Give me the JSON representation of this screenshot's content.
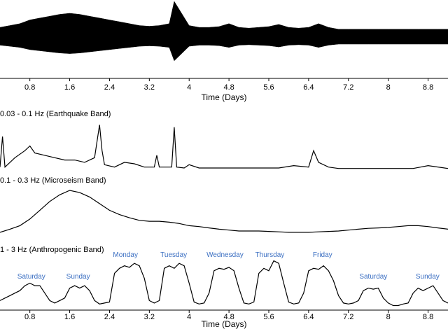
{
  "chart_data": [
    {
      "type": "envelope",
      "color": "#000000",
      "x": [
        0.2,
        0.4,
        0.6,
        0.8,
        1.0,
        1.2,
        1.4,
        1.6,
        1.8,
        2.0,
        2.2,
        2.4,
        2.6,
        2.8,
        3.0,
        3.2,
        3.4,
        3.6,
        3.7,
        4.0,
        4.2,
        4.4,
        4.6,
        4.8,
        5.0,
        5.2,
        5.4,
        5.6,
        5.8,
        6.0,
        6.2,
        6.4,
        6.6,
        6.8,
        7.0,
        7.2,
        7.4,
        7.6,
        7.8,
        8.0,
        8.2,
        8.4,
        8.6,
        8.8,
        9.0,
        9.2
      ],
      "values": [
        0.3,
        0.35,
        0.4,
        0.5,
        0.55,
        0.6,
        0.65,
        0.68,
        0.65,
        0.6,
        0.55,
        0.5,
        0.45,
        0.4,
        0.35,
        0.33,
        0.35,
        0.4,
        1.0,
        0.35,
        0.3,
        0.3,
        0.32,
        0.4,
        0.3,
        0.28,
        0.3,
        0.32,
        0.38,
        0.3,
        0.28,
        0.3,
        0.4,
        0.3,
        0.25,
        0.25,
        0.25,
        0.25,
        0.25,
        0.25,
        0.25,
        0.25,
        0.25,
        0.25,
        0.25,
        0.25
      ],
      "xlim": [
        0.2,
        9.2
      ],
      "ylim": [
        0,
        1
      ],
      "xticks": [
        0.8,
        1.6,
        2.4,
        3.2,
        4,
        4.8,
        5.6,
        6.4,
        7.2,
        8,
        8.8
      ],
      "xlabel": "Time (Days)"
    },
    {
      "type": "line",
      "color": "#000000",
      "title": "0.03 - 0.1 Hz (Earthquake Band)",
      "x": [
        0.2,
        0.25,
        0.3,
        0.35,
        0.5,
        0.7,
        0.8,
        0.9,
        1.1,
        1.3,
        1.5,
        1.7,
        1.9,
        2.1,
        2.2,
        2.25,
        2.3,
        2.5,
        2.7,
        2.9,
        3.1,
        3.3,
        3.35,
        3.4,
        3.5,
        3.65,
        3.7,
        3.75,
        3.9,
        4.0,
        4.2,
        4.6,
        5.0,
        5.4,
        5.8,
        6.1,
        6.4,
        6.5,
        6.6,
        6.8,
        7.0,
        7.5,
        8.0,
        8.5,
        8.8,
        9.2
      ],
      "values": [
        0.05,
        0.7,
        0.05,
        0.1,
        0.25,
        0.4,
        0.5,
        0.35,
        0.3,
        0.25,
        0.2,
        0.2,
        0.15,
        0.25,
        0.95,
        0.4,
        0.1,
        0.05,
        0.15,
        0.12,
        0.05,
        0.05,
        0.3,
        0.05,
        0.05,
        0.05,
        0.9,
        0.05,
        0.03,
        0.1,
        0.03,
        0.03,
        0.03,
        0.03,
        0.03,
        0.08,
        0.05,
        0.4,
        0.15,
        0.05,
        0.02,
        0.02,
        0.02,
        0.02,
        0.08,
        0.02
      ],
      "xlim": [
        0.2,
        9.2
      ],
      "ylim": [
        0,
        1
      ]
    },
    {
      "type": "line",
      "color": "#000000",
      "title": "0.1 - 0.3 Hz (Microseism Band)",
      "x": [
        0.2,
        0.4,
        0.6,
        0.8,
        1.0,
        1.2,
        1.4,
        1.6,
        1.8,
        2.0,
        2.2,
        2.4,
        2.6,
        2.8,
        3.0,
        3.2,
        3.4,
        3.6,
        3.8,
        4.0,
        4.2,
        4.4,
        4.6,
        4.8,
        5.0,
        5.2,
        5.4,
        5.6,
        5.8,
        6.0,
        6.2,
        6.4,
        6.6,
        6.8,
        7.0,
        7.2,
        7.4,
        7.6,
        7.8,
        8.0,
        8.2,
        8.4,
        8.6,
        8.8,
        9.0,
        9.2
      ],
      "values": [
        0.05,
        0.12,
        0.2,
        0.35,
        0.55,
        0.75,
        0.9,
        1.0,
        0.95,
        0.85,
        0.7,
        0.55,
        0.45,
        0.38,
        0.32,
        0.3,
        0.3,
        0.28,
        0.25,
        0.2,
        0.18,
        0.15,
        0.12,
        0.1,
        0.08,
        0.08,
        0.08,
        0.07,
        0.06,
        0.05,
        0.05,
        0.05,
        0.06,
        0.07,
        0.08,
        0.1,
        0.12,
        0.14,
        0.15,
        0.16,
        0.18,
        0.2,
        0.2,
        0.18,
        0.15,
        0.12
      ],
      "xlim": [
        0.2,
        9.2
      ],
      "ylim": [
        0,
        1
      ]
    },
    {
      "type": "line",
      "color": "#000000",
      "title": "1 - 3 Hz (Anthropogenic Band)",
      "x": [
        0.2,
        0.3,
        0.4,
        0.5,
        0.6,
        0.7,
        0.8,
        0.9,
        1.0,
        1.1,
        1.2,
        1.3,
        1.4,
        1.5,
        1.6,
        1.7,
        1.8,
        1.9,
        2.0,
        2.1,
        2.2,
        2.3,
        2.4,
        2.5,
        2.6,
        2.7,
        2.8,
        2.9,
        3.0,
        3.1,
        3.2,
        3.3,
        3.4,
        3.5,
        3.6,
        3.7,
        3.8,
        3.9,
        4.0,
        4.1,
        4.2,
        4.3,
        4.4,
        4.5,
        4.6,
        4.7,
        4.8,
        4.9,
        5.0,
        5.1,
        5.2,
        5.3,
        5.4,
        5.5,
        5.6,
        5.7,
        5.8,
        5.9,
        6.0,
        6.1,
        6.2,
        6.3,
        6.4,
        6.5,
        6.6,
        6.7,
        6.8,
        6.9,
        7.0,
        7.1,
        7.2,
        7.3,
        7.4,
        7.5,
        7.6,
        7.7,
        7.8,
        7.9,
        8.0,
        8.1,
        8.2,
        8.3,
        8.4,
        8.5,
        8.6,
        8.7,
        8.8,
        8.9,
        9.0,
        9.1,
        9.2
      ],
      "values": [
        0.15,
        0.2,
        0.25,
        0.3,
        0.35,
        0.45,
        0.5,
        0.45,
        0.45,
        0.3,
        0.15,
        0.1,
        0.15,
        0.2,
        0.4,
        0.45,
        0.4,
        0.45,
        0.35,
        0.15,
        0.08,
        0.1,
        0.12,
        0.7,
        0.8,
        0.85,
        0.82,
        0.9,
        0.85,
        0.6,
        0.15,
        0.1,
        0.15,
        0.8,
        0.85,
        0.8,
        0.9,
        0.85,
        0.5,
        0.12,
        0.08,
        0.1,
        0.3,
        0.75,
        0.8,
        0.78,
        0.82,
        0.75,
        0.4,
        0.1,
        0.08,
        0.12,
        0.7,
        0.8,
        0.75,
        0.95,
        0.9,
        0.5,
        0.12,
        0.08,
        0.1,
        0.3,
        0.75,
        0.8,
        0.78,
        0.85,
        0.75,
        0.55,
        0.25,
        0.1,
        0.08,
        0.1,
        0.15,
        0.35,
        0.4,
        0.38,
        0.4,
        0.2,
        0.1,
        0.05,
        0.05,
        0.08,
        0.1,
        0.3,
        0.4,
        0.35,
        0.4,
        0.45,
        0.3,
        0.15,
        0.1
      ],
      "xlim": [
        0.2,
        9.2
      ],
      "ylim": [
        0,
        1.1
      ],
      "xticks": [
        0.8,
        1.6,
        2.4,
        3.2,
        4,
        4.8,
        5.6,
        6.4,
        7.2,
        8,
        8.8
      ],
      "xlabel": "Time (Days)",
      "annotation_color": "#3b6fc2",
      "annotations": [
        {
          "text": "Saturday",
          "x": 0.83,
          "y": 0.63
        },
        {
          "text": "Sunday",
          "x": 1.77,
          "y": 0.63
        },
        {
          "text": "Monday",
          "x": 2.72,
          "y": 1.07
        },
        {
          "text": "Tuesday",
          "x": 3.69,
          "y": 1.07
        },
        {
          "text": "Wednesday",
          "x": 4.72,
          "y": 1.07
        },
        {
          "text": "Thursday",
          "x": 5.62,
          "y": 1.07
        },
        {
          "text": "Friday",
          "x": 6.68,
          "y": 1.07
        },
        {
          "text": "Saturday",
          "x": 7.7,
          "y": 0.63
        },
        {
          "text": "Sunday",
          "x": 8.79,
          "y": 0.63
        }
      ]
    }
  ]
}
